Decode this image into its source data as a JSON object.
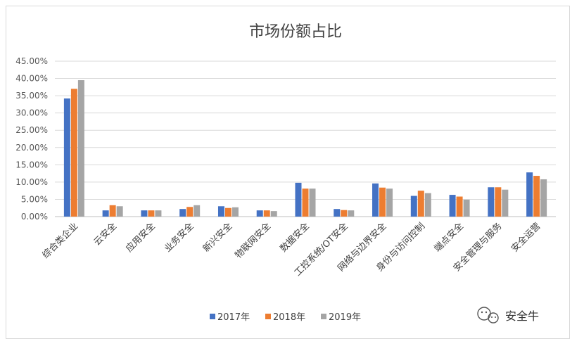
{
  "chart_data": {
    "type": "bar",
    "title": "市场份额占比",
    "categories": [
      "综合类企业",
      "云安全",
      "应用安全",
      "业务安全",
      "新兴安全",
      "物联网安全",
      "数据安全",
      "工控系统/OT安全",
      "网络与边界安全",
      "身份与访问控制",
      "端点安全",
      "安全管理与服务",
      "安全运营"
    ],
    "series": [
      {
        "name": "2017年",
        "color": "#4472C4",
        "values": [
          34.2,
          1.8,
          1.8,
          2.2,
          3.0,
          1.8,
          9.8,
          2.2,
          9.6,
          6.0,
          6.3,
          8.5,
          12.8
        ]
      },
      {
        "name": "2018年",
        "color": "#ED7D31",
        "values": [
          37.0,
          3.3,
          1.8,
          2.8,
          2.5,
          1.8,
          8.1,
          1.9,
          8.4,
          7.5,
          5.8,
          8.5,
          11.8
        ]
      },
      {
        "name": "2019年",
        "color": "#A5A5A5",
        "values": [
          39.5,
          3.0,
          1.8,
          3.3,
          2.7,
          1.6,
          8.1,
          1.8,
          8.1,
          6.8,
          4.9,
          7.8,
          10.8
        ]
      }
    ],
    "ylim": [
      0,
      45
    ],
    "yticks": [
      "0.00%",
      "5.00%",
      "10.00%",
      "15.00%",
      "20.00%",
      "25.00%",
      "30.00%",
      "35.00%",
      "40.00%",
      "45.00%"
    ],
    "ystep": 5,
    "grid": true,
    "legend_position": "bottom"
  },
  "watermark": {
    "icon": "wechat-icon",
    "text": "安全牛"
  }
}
